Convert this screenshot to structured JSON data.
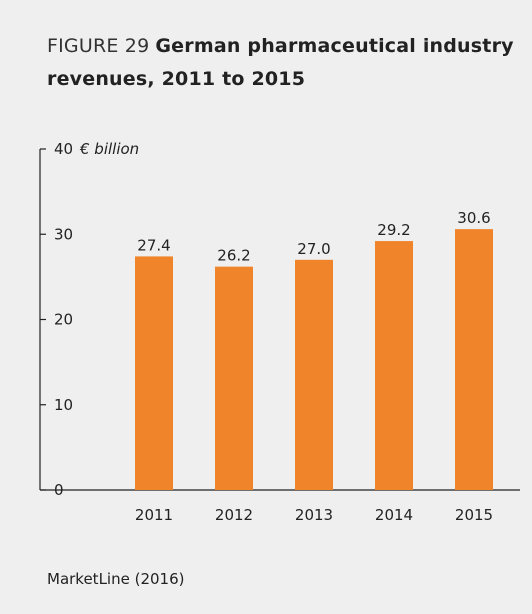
{
  "figure": {
    "label": "FIGURE 29",
    "title": "German pharmaceutical industry revenues, 2011 to 2015",
    "source": "MarketLine (2016)"
  },
  "colors": {
    "bar": "#f0842a",
    "axis": "#222222",
    "background": "#efefef"
  },
  "chart_data": {
    "type": "bar",
    "categories": [
      "2011",
      "2012",
      "2013",
      "2014",
      "2015"
    ],
    "values": [
      27.4,
      26.2,
      27.0,
      29.2,
      30.6
    ],
    "value_labels": [
      "27.4",
      "26.2",
      "27.0",
      "29.2",
      "30.6"
    ],
    "ylabel": "€ billion",
    "ylim": [
      0,
      40
    ],
    "yticks": [
      0,
      10,
      20,
      30,
      40
    ],
    "grid": false,
    "legend": "none"
  }
}
